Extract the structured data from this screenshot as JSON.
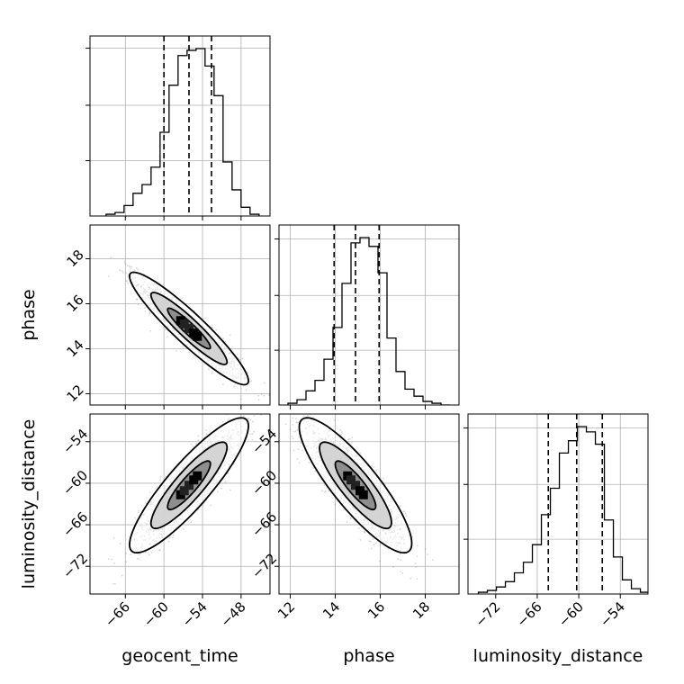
{
  "chart_data": {
    "type": "corner",
    "parameters": [
      "geocent_time",
      "phase",
      "luminosity_distance"
    ],
    "grid": true,
    "ranges": {
      "geocent_time": [
        -71.5,
        -43.5
      ],
      "phase": [
        11.5,
        19.5
      ],
      "luminosity_distance": [
        -76,
        -50
      ]
    },
    "ticks": {
      "geocent_time": [
        -66,
        -60,
        -54,
        -48
      ],
      "phase": [
        12,
        14,
        16,
        18
      ],
      "luminosity_distance": [
        -72,
        -66,
        -60,
        -54
      ]
    },
    "tick_labels": {
      "geocent_time": [
        "−66",
        "−60",
        "−54",
        "−48"
      ],
      "phase": [
        "12",
        "14",
        "16",
        "18"
      ],
      "luminosity_distance": [
        "−72",
        "−66",
        "−60",
        "−54"
      ]
    },
    "quantiles": {
      "geocent_time": [
        -60.0,
        -56.1,
        -52.6
      ],
      "phase": [
        13.95,
        14.9,
        15.95
      ],
      "luminosity_distance": [
        -64.4,
        -60.3,
        -56.6
      ]
    },
    "marginals": {
      "geocent_time": {
        "bin_edges": [
          -69,
          -67.6,
          -66.2,
          -64.8,
          -63.4,
          -62,
          -60.6,
          -59.2,
          -57.8,
          -56.4,
          -55,
          -53.6,
          -52.2,
          -50.8,
          -49.4,
          -48,
          -46.6,
          -45.2
        ],
        "counts": [
          0.01,
          0.02,
          0.06,
          0.13,
          0.18,
          0.28,
          0.48,
          0.75,
          0.92,
          0.95,
          0.96,
          0.86,
          0.69,
          0.31,
          0.15,
          0.05,
          0.01
        ]
      },
      "phase": {
        "bin_edges": [
          11.9,
          12.3,
          12.7,
          13.1,
          13.5,
          13.9,
          14.3,
          14.7,
          15.1,
          15.5,
          15.9,
          16.3,
          16.7,
          17.1,
          17.5,
          17.9,
          18.3,
          18.7,
          19.1
        ],
        "counts": [
          0.01,
          0.03,
          0.08,
          0.14,
          0.26,
          0.44,
          0.69,
          0.92,
          0.95,
          0.9,
          0.75,
          0.38,
          0.19,
          0.09,
          0.05,
          0.02,
          0.01,
          0.0
        ]
      },
      "luminosity_distance": {
        "bin_edges": [
          -74.5,
          -73.2,
          -71.9,
          -70.6,
          -69.3,
          -68,
          -66.7,
          -65.4,
          -64.1,
          -62.8,
          -61.5,
          -60.2,
          -58.9,
          -57.6,
          -56.3,
          -55,
          -53.7,
          -52.4,
          -51.1,
          -49.8
        ],
        "counts": [
          0.01,
          0.02,
          0.04,
          0.07,
          0.12,
          0.18,
          0.28,
          0.45,
          0.6,
          0.8,
          0.87,
          0.95,
          0.92,
          0.85,
          0.42,
          0.21,
          0.08,
          0.03,
          0.01
        ]
      }
    },
    "correlations": {
      "phase|geocent_time": -0.93,
      "luminosity_distance|geocent_time": 0.88,
      "luminosity_distance|phase": -0.86
    },
    "colors": {
      "line": "#000000",
      "grid": "#b0b0b0",
      "points": "#8c8c8c",
      "fill_outer": "#d0d0d0",
      "fill_inner": "#8a8a8a"
    }
  }
}
